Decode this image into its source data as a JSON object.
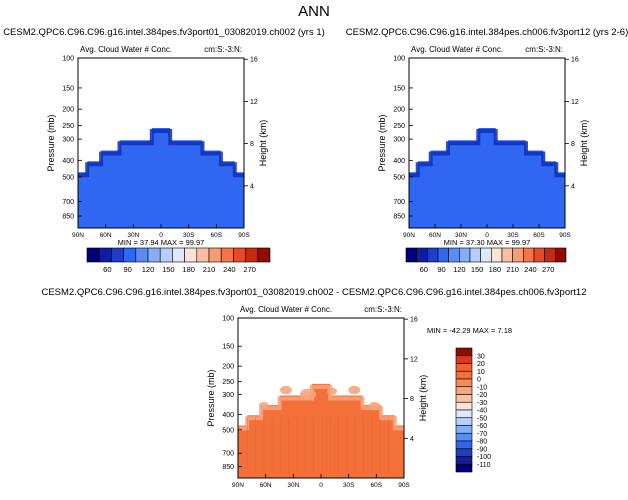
{
  "figure": {
    "title": "ANN"
  },
  "colors": {
    "main_blue": "#2f66f2",
    "panel3_orange": "#f4703a",
    "panel3_light": "#f7a47e"
  },
  "chart_data": [
    {
      "type": "heatmap",
      "title": "CESM2.QPC6.C96.C96.g16.intel.384pes.fv3port01_03082019.ch002 (yrs 1)",
      "subtitle_left": "Avg. Cloud Water # Conc.",
      "subtitle_right": "cm:S:-3:N:",
      "ylabel": "Pressure (mb)",
      "ylabel_right": "Height (km)",
      "x_ticks": [
        "90N",
        "60N",
        "30N",
        "0",
        "30S",
        "60S",
        "90S"
      ],
      "y_ticks": [
        "100",
        "150",
        "200",
        "250",
        "300",
        "400",
        "500",
        "700",
        "850"
      ],
      "y_ticks_right": [
        "16",
        "12",
        "8",
        "4"
      ],
      "stats": "MIN = 37.94  MAX = 99.97",
      "cloud_top_profile_mb": [
        [
          -90,
          470
        ],
        [
          -80,
          470
        ],
        [
          -80,
          405
        ],
        [
          -65,
          405
        ],
        [
          -65,
          350
        ],
        [
          -45,
          350
        ],
        [
          -45,
          305
        ],
        [
          -10,
          305
        ],
        [
          -10,
          258
        ],
        [
          10,
          258
        ],
        [
          10,
          305
        ],
        [
          45,
          305
        ],
        [
          45,
          350
        ],
        [
          65,
          350
        ],
        [
          65,
          405
        ],
        [
          80,
          405
        ],
        [
          80,
          470
        ],
        [
          90,
          470
        ]
      ],
      "fill_color": "#2f66f2"
    },
    {
      "type": "heatmap",
      "title": "CESM2.QPC6.C96.C96.g16.intel.384pes.ch006.fv3port12 (yrs 2-6)",
      "subtitle_left": "Avg. Cloud Water # Conc.",
      "subtitle_right": "cm:S:-3:N:",
      "ylabel": "Pressure (mb)",
      "ylabel_right": "Height (km)",
      "x_ticks": [
        "90N",
        "60N",
        "30N",
        "0",
        "30S",
        "60S",
        "90S"
      ],
      "y_ticks": [
        "100",
        "150",
        "200",
        "250",
        "300",
        "400",
        "500",
        "700",
        "850"
      ],
      "y_ticks_right": [
        "16",
        "12",
        "8",
        "4"
      ],
      "stats": "MIN = 37.30  MAX = 99.97",
      "cloud_top_profile_mb": [
        [
          -90,
          470
        ],
        [
          -80,
          470
        ],
        [
          -80,
          405
        ],
        [
          -65,
          405
        ],
        [
          -65,
          350
        ],
        [
          -45,
          350
        ],
        [
          -45,
          305
        ],
        [
          -10,
          305
        ],
        [
          -10,
          258
        ],
        [
          10,
          258
        ],
        [
          10,
          305
        ],
        [
          45,
          305
        ],
        [
          45,
          350
        ],
        [
          65,
          350
        ],
        [
          65,
          405
        ],
        [
          80,
          405
        ],
        [
          80,
          470
        ],
        [
          90,
          470
        ]
      ],
      "fill_color": "#2f66f2"
    },
    {
      "type": "heatmap",
      "title": "CESM2.QPC6.C96.C96.g16.intel.384pes.fv3port01_03082019.ch002 - CESM2.QPC6.C96.C96.g16.intel.384pes.ch006.fv3port12",
      "subtitle_left": "Avg. Cloud Water # Conc.",
      "subtitle_right": "cm:S:-3:N:",
      "ylabel": "Pressure (mb)",
      "ylabel_right": "Height (km)",
      "x_ticks": [
        "90N",
        "60N",
        "30N",
        "0",
        "30S",
        "60S",
        "90S"
      ],
      "y_ticks": [
        "100",
        "150",
        "200",
        "250",
        "300",
        "400",
        "500",
        "700",
        "850"
      ],
      "y_ticks_right": [
        "16",
        "12",
        "8",
        "4"
      ],
      "stats": "MIN = -42.29  MAX =  7.18",
      "cloud_top_profile_mb": [
        [
          -90,
          470
        ],
        [
          -80,
          470
        ],
        [
          -80,
          405
        ],
        [
          -65,
          405
        ],
        [
          -65,
          350
        ],
        [
          -45,
          350
        ],
        [
          -45,
          305
        ],
        [
          -10,
          305
        ],
        [
          -10,
          258
        ],
        [
          10,
          258
        ],
        [
          10,
          305
        ],
        [
          45,
          305
        ],
        [
          45,
          350
        ],
        [
          65,
          350
        ],
        [
          65,
          405
        ],
        [
          80,
          405
        ],
        [
          80,
          470
        ],
        [
          90,
          470
        ]
      ],
      "fill_color": "#f4703a"
    }
  ],
  "colorbar_abs": {
    "labels": [
      "60",
      "90",
      "120",
      "150",
      "180",
      "210",
      "240",
      "270"
    ],
    "colors": [
      "#00007a",
      "#0d1ea0",
      "#1c3ec8",
      "#2f66f2",
      "#5a8cf5",
      "#86aef7",
      "#b4cff9",
      "#dde9fb",
      "#fde3d6",
      "#fbc0a3",
      "#f89a72",
      "#f47547",
      "#e54b26",
      "#c12a13",
      "#900b06"
    ]
  },
  "colorbar_diff": {
    "labels": [
      "30",
      "20",
      "10",
      "0",
      "-10",
      "-20",
      "-30",
      "-40",
      "-50",
      "-60",
      "-70",
      "-80",
      "-90",
      "-100",
      "-110"
    ],
    "colors": [
      "#900b06",
      "#d13a1e",
      "#f06030",
      "#f4703a",
      "#f7895a",
      "#f9a27e",
      "#fbc0a3",
      "#fde3d6",
      "#dde9fb",
      "#b4cff9",
      "#86aef7",
      "#5a8cf5",
      "#2f66f2",
      "#1c3ec8",
      "#0d1ea0",
      "#00007a"
    ]
  }
}
